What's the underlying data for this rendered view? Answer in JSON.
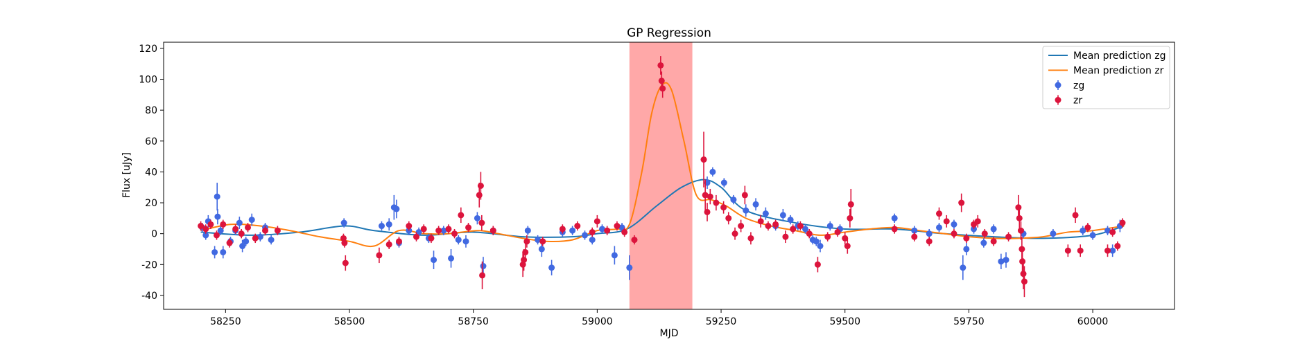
{
  "chart_data": {
    "type": "scatter",
    "title": "GP Regression",
    "xlabel": "MJD",
    "ylabel": "Flux [uJy]",
    "xlim": [
      58125,
      60165
    ],
    "ylim": [
      -49,
      124
    ],
    "xticks": [
      58250,
      58500,
      58750,
      59000,
      59250,
      59500,
      59750,
      60000
    ],
    "yticks": [
      -40,
      -20,
      0,
      20,
      40,
      60,
      80,
      100,
      120
    ],
    "grid": false,
    "legend_position": "top-right",
    "highlight_span": {
      "x": [
        59065,
        59192
      ],
      "color": "#ff9999"
    },
    "colors": {
      "zg": "#4169e1",
      "zr": "#dc143c",
      "mean_zg": "#1f77b4",
      "mean_zr": "#ff7f0e"
    },
    "legend": [
      {
        "label": "Mean prediction zg",
        "kind": "line",
        "color": "#1f77b4"
      },
      {
        "label": "Mean prediction zr",
        "kind": "line",
        "color": "#ff7f0e"
      },
      {
        "label": "zg",
        "kind": "errorbar",
        "color": "#4169e1"
      },
      {
        "label": "zr",
        "kind": "errorbar",
        "color": "#dc143c"
      }
    ],
    "lines": [
      {
        "name": "Mean prediction zg",
        "color": "#1f77b4",
        "x": [
          58200,
          58300,
          58400,
          58490,
          58550,
          58650,
          58750,
          58850,
          58950,
          59000,
          59060,
          59120,
          59170,
          59215,
          59250,
          59300,
          59400,
          59500,
          59600,
          59700,
          59800,
          59900,
          60000,
          60063
        ],
        "y": [
          1,
          -1,
          1,
          5,
          2,
          -1,
          1,
          -2,
          -2,
          0,
          3,
          18,
          30,
          35,
          30,
          15,
          7,
          3,
          3,
          0,
          -2,
          -3,
          -1,
          5
        ]
      },
      {
        "name": "Mean prediction zr",
        "color": "#ff7f0e",
        "x": [
          58200,
          58260,
          58320,
          58380,
          58440,
          58500,
          58550,
          58600,
          58650,
          58700,
          58760,
          58800,
          58850,
          58900,
          58950,
          59000,
          59040,
          59065,
          59090,
          59110,
          59130,
          59150,
          59175,
          59200,
          59230,
          59260,
          59300,
          59350,
          59400,
          59450,
          59500,
          59550,
          59600,
          59650,
          59700,
          59750,
          59800,
          59850,
          59900,
          59950,
          60000,
          60063
        ],
        "y": [
          2,
          6,
          5,
          2,
          -2,
          -5,
          -8,
          2,
          0,
          0,
          2,
          0,
          -3,
          -5,
          -4,
          2,
          3,
          6,
          40,
          78,
          96,
          93,
          60,
          25,
          22,
          18,
          10,
          5,
          2,
          -1,
          1,
          3,
          4,
          2,
          0,
          -2,
          -3,
          -3,
          -2,
          1,
          2,
          5
        ]
      }
    ],
    "series": [
      {
        "name": "zg",
        "color": "#4169e1",
        "points": [
          [
            58203,
            4,
            3
          ],
          [
            58210,
            -1,
            3
          ],
          [
            58215,
            8,
            4
          ],
          [
            58228,
            -12,
            4
          ],
          [
            58233,
            24,
            9
          ],
          [
            58234,
            11,
            5
          ],
          [
            58240,
            2,
            3
          ],
          [
            58245,
            -12,
            4
          ],
          [
            58260,
            -5,
            3
          ],
          [
            58270,
            2,
            3
          ],
          [
            58278,
            7,
            4
          ],
          [
            58284,
            -8,
            4
          ],
          [
            58291,
            -5,
            3
          ],
          [
            58303,
            9,
            4
          ],
          [
            58320,
            -2,
            3
          ],
          [
            58330,
            4,
            3
          ],
          [
            58342,
            -4,
            3
          ],
          [
            58489,
            7,
            3
          ],
          [
            58565,
            5,
            3
          ],
          [
            58580,
            6,
            4
          ],
          [
            58590,
            17,
            8
          ],
          [
            58595,
            16,
            6
          ],
          [
            58600,
            -6,
            3
          ],
          [
            58620,
            2,
            3
          ],
          [
            58640,
            1,
            3
          ],
          [
            58660,
            -3,
            3
          ],
          [
            58670,
            -17,
            6
          ],
          [
            58690,
            2,
            3
          ],
          [
            58705,
            -16,
            6
          ],
          [
            58720,
            -4,
            3
          ],
          [
            58735,
            -5,
            4
          ],
          [
            58758,
            10,
            4
          ],
          [
            58770,
            -21,
            6
          ],
          [
            58790,
            2,
            3
          ],
          [
            58860,
            2,
            3
          ],
          [
            58880,
            -4,
            3
          ],
          [
            58888,
            -10,
            5
          ],
          [
            58908,
            -22,
            5
          ],
          [
            58930,
            1,
            3
          ],
          [
            58950,
            2,
            3
          ],
          [
            58975,
            -1,
            3
          ],
          [
            58990,
            -4,
            3
          ],
          [
            59010,
            3,
            3
          ],
          [
            59035,
            -14,
            6
          ],
          [
            59050,
            4,
            3
          ],
          [
            59065,
            -22,
            8
          ],
          [
            59222,
            33,
            4
          ],
          [
            59233,
            40,
            3
          ],
          [
            59256,
            33,
            3
          ],
          [
            59275,
            22,
            3
          ],
          [
            59300,
            15,
            4
          ],
          [
            59320,
            19,
            4
          ],
          [
            59340,
            13,
            4
          ],
          [
            59360,
            5,
            3
          ],
          [
            59375,
            12,
            4
          ],
          [
            59390,
            9,
            3
          ],
          [
            59405,
            5,
            3
          ],
          [
            59420,
            3,
            3
          ],
          [
            59435,
            -4,
            3
          ],
          [
            59442,
            -5,
            3
          ],
          [
            59450,
            -8,
            4
          ],
          [
            59470,
            5,
            3
          ],
          [
            59490,
            3,
            3
          ],
          [
            59600,
            10,
            3
          ],
          [
            59640,
            2,
            3
          ],
          [
            59670,
            0,
            3
          ],
          [
            59690,
            4,
            3
          ],
          [
            59720,
            6,
            3
          ],
          [
            59738,
            -22,
            8
          ],
          [
            59745,
            -10,
            4
          ],
          [
            59760,
            3,
            3
          ],
          [
            59780,
            -6,
            3
          ],
          [
            59800,
            3,
            3
          ],
          [
            59815,
            -18,
            5
          ],
          [
            59825,
            -17,
            5
          ],
          [
            59860,
            0,
            3
          ],
          [
            59920,
            0,
            3
          ],
          [
            59980,
            2,
            3
          ],
          [
            60000,
            -1,
            3
          ],
          [
            60030,
            2,
            3
          ],
          [
            60040,
            -11,
            4
          ],
          [
            60055,
            5,
            4
          ]
        ]
      },
      {
        "name": "zr",
        "color": "#dc143c",
        "points": [
          [
            58200,
            5,
            3
          ],
          [
            58210,
            3,
            3
          ],
          [
            58220,
            6,
            3
          ],
          [
            58232,
            -1,
            3
          ],
          [
            58245,
            6,
            3
          ],
          [
            58258,
            -6,
            3
          ],
          [
            58270,
            3,
            3
          ],
          [
            58282,
            0,
            3
          ],
          [
            58295,
            4,
            3
          ],
          [
            58310,
            -3,
            3
          ],
          [
            58330,
            2,
            3
          ],
          [
            58355,
            2,
            3
          ],
          [
            58488,
            -3,
            3
          ],
          [
            58490,
            -6,
            3
          ],
          [
            58492,
            -19,
            5
          ],
          [
            58560,
            -14,
            5
          ],
          [
            58580,
            -7,
            3
          ],
          [
            58600,
            -5,
            3
          ],
          [
            58620,
            5,
            3
          ],
          [
            58635,
            -2,
            3
          ],
          [
            58650,
            3,
            3
          ],
          [
            58665,
            -3,
            3
          ],
          [
            58680,
            2,
            3
          ],
          [
            58700,
            3,
            3
          ],
          [
            58712,
            0,
            3
          ],
          [
            58725,
            12,
            5
          ],
          [
            58740,
            4,
            3
          ],
          [
            58762,
            25,
            8
          ],
          [
            58765,
            31,
            9
          ],
          [
            58767,
            7,
            5
          ],
          [
            58768,
            -27,
            9
          ],
          [
            58790,
            2,
            3
          ],
          [
            58850,
            -20,
            8
          ],
          [
            58852,
            -17,
            7
          ],
          [
            58855,
            -12,
            6
          ],
          [
            58858,
            -5,
            4
          ],
          [
            58890,
            -5,
            3
          ],
          [
            58930,
            3,
            3
          ],
          [
            58960,
            5,
            3
          ],
          [
            58990,
            1,
            3
          ],
          [
            59000,
            8,
            4
          ],
          [
            59020,
            2,
            3
          ],
          [
            59040,
            5,
            3
          ],
          [
            59055,
            1,
            3
          ],
          [
            59075,
            -4,
            3
          ],
          [
            59128,
            109,
            6
          ],
          [
            59130,
            99,
            6
          ],
          [
            59132,
            94,
            6
          ],
          [
            59215,
            48,
            18
          ],
          [
            59218,
            25,
            10
          ],
          [
            59222,
            14,
            6
          ],
          [
            59228,
            24,
            5
          ],
          [
            59240,
            20,
            5
          ],
          [
            59255,
            17,
            4
          ],
          [
            59265,
            10,
            4
          ],
          [
            59278,
            0,
            4
          ],
          [
            59290,
            5,
            4
          ],
          [
            59298,
            25,
            6
          ],
          [
            59310,
            -3,
            4
          ],
          [
            59330,
            8,
            4
          ],
          [
            59345,
            5,
            3
          ],
          [
            59360,
            6,
            3
          ],
          [
            59380,
            -2,
            4
          ],
          [
            59395,
            3,
            3
          ],
          [
            59410,
            5,
            3
          ],
          [
            59428,
            0,
            3
          ],
          [
            59445,
            -20,
            5
          ],
          [
            59465,
            -2,
            3
          ],
          [
            59485,
            1,
            3
          ],
          [
            59500,
            -3,
            4
          ],
          [
            59505,
            -8,
            5
          ],
          [
            59510,
            10,
            6
          ],
          [
            59512,
            19,
            10
          ],
          [
            59600,
            3,
            3
          ],
          [
            59640,
            -2,
            3
          ],
          [
            59670,
            -5,
            3
          ],
          [
            59690,
            13,
            4
          ],
          [
            59705,
            8,
            4
          ],
          [
            59720,
            0,
            3
          ],
          [
            59735,
            20,
            6
          ],
          [
            59745,
            -3,
            3
          ],
          [
            59760,
            6,
            3
          ],
          [
            59768,
            8,
            4
          ],
          [
            59782,
            0,
            3
          ],
          [
            59800,
            -5,
            3
          ],
          [
            59830,
            -2,
            3
          ],
          [
            59850,
            17,
            8
          ],
          [
            59852,
            10,
            7
          ],
          [
            59855,
            2,
            6
          ],
          [
            59857,
            -10,
            8
          ],
          [
            59858,
            -18,
            9
          ],
          [
            59860,
            -26,
            10
          ],
          [
            59862,
            -31,
            10
          ],
          [
            59950,
            -11,
            4
          ],
          [
            59965,
            12,
            5
          ],
          [
            59975,
            -11,
            4
          ],
          [
            59990,
            4,
            3
          ],
          [
            60030,
            -11,
            4
          ],
          [
            60040,
            1,
            3
          ],
          [
            60050,
            -8,
            3
          ],
          [
            60060,
            7,
            3
          ]
        ]
      }
    ]
  }
}
